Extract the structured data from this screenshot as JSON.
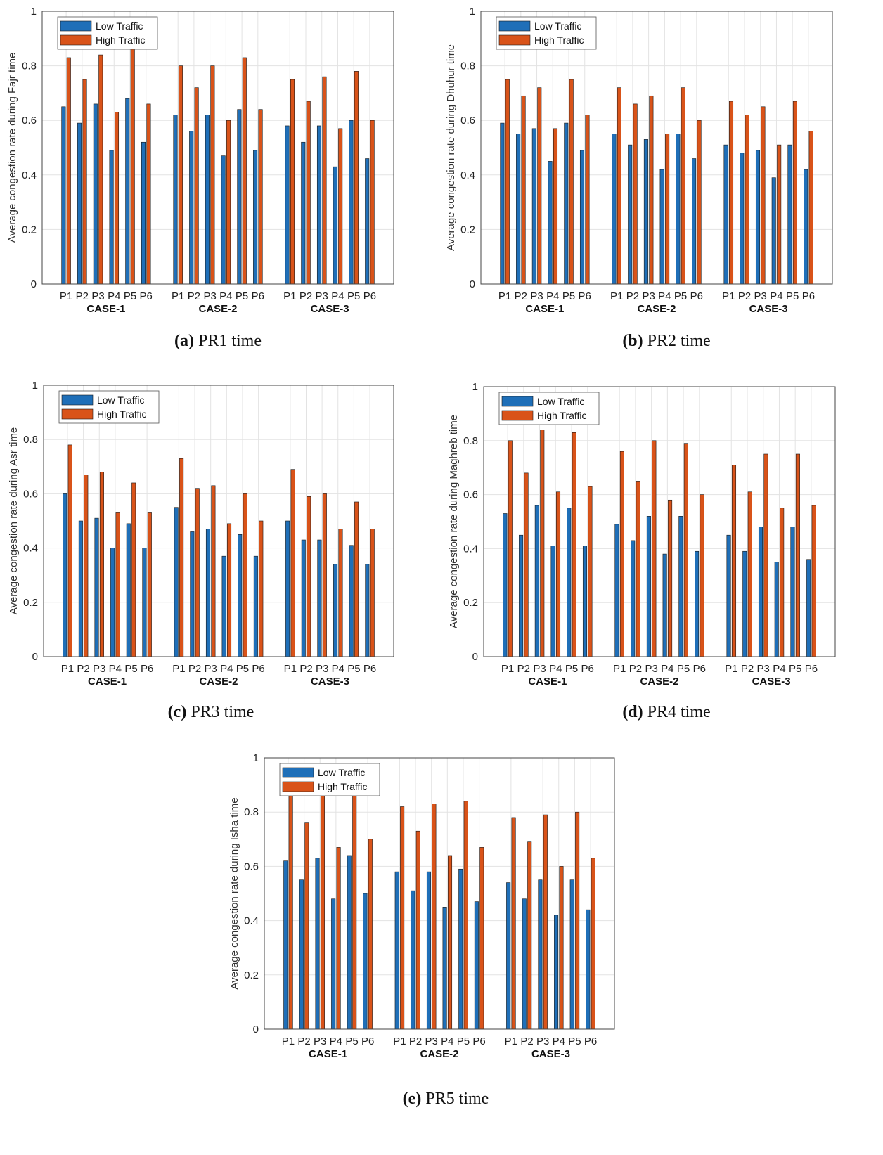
{
  "colors": {
    "low": "#1f6fb8",
    "high": "#d95319",
    "grid": "#e3e3e3",
    "axis": "#444444"
  },
  "chart_data": [
    {
      "type": "bar",
      "caption_letter": "(a)",
      "caption_text": " PR1 time",
      "ylabel": "Average congestion rate during Fajr time",
      "ylim": [
        0,
        1
      ],
      "yticks": [
        "0",
        "0.2",
        "0.4",
        "0.6",
        "0.8",
        "1"
      ],
      "groups": [
        "CASE-1",
        "CASE-2",
        "CASE-3"
      ],
      "categories": [
        "P1",
        "P2",
        "P3",
        "P4",
        "P5",
        "P6"
      ],
      "legend": "top-left",
      "series": [
        {
          "name": "Low Traffic",
          "values": [
            [
              0.65,
              0.59,
              0.66,
              0.49,
              0.68,
              0.52
            ],
            [
              0.62,
              0.56,
              0.62,
              0.47,
              0.64,
              0.49
            ],
            [
              0.58,
              0.52,
              0.58,
              0.43,
              0.6,
              0.46
            ]
          ]
        },
        {
          "name": "High Traffic",
          "values": [
            [
              0.83,
              0.75,
              0.84,
              0.63,
              0.87,
              0.66
            ],
            [
              0.8,
              0.72,
              0.8,
              0.6,
              0.83,
              0.64
            ],
            [
              0.75,
              0.67,
              0.76,
              0.57,
              0.78,
              0.6
            ]
          ]
        }
      ]
    },
    {
      "type": "bar",
      "caption_letter": "(b)",
      "caption_text": " PR2 time",
      "ylabel": "Average congestion rate during Dhuhur time",
      "ylim": [
        0,
        1
      ],
      "yticks": [
        "0",
        "0.2",
        "0.4",
        "0.6",
        "0.8",
        "1"
      ],
      "groups": [
        "CASE-1",
        "CASE-2",
        "CASE-3"
      ],
      "categories": [
        "P1",
        "P2",
        "P3",
        "P4",
        "P5",
        "P6"
      ],
      "legend": "top-left",
      "series": [
        {
          "name": "Low Traffic",
          "values": [
            [
              0.59,
              0.55,
              0.57,
              0.45,
              0.59,
              0.49
            ],
            [
              0.55,
              0.51,
              0.53,
              0.42,
              0.55,
              0.46
            ],
            [
              0.51,
              0.48,
              0.49,
              0.39,
              0.51,
              0.42
            ]
          ]
        },
        {
          "name": "High Traffic",
          "values": [
            [
              0.75,
              0.69,
              0.72,
              0.57,
              0.75,
              0.62
            ],
            [
              0.72,
              0.66,
              0.69,
              0.55,
              0.72,
              0.6
            ],
            [
              0.67,
              0.62,
              0.65,
              0.51,
              0.67,
              0.56
            ]
          ]
        }
      ]
    },
    {
      "type": "bar",
      "caption_letter": "(c)",
      "caption_text": " PR3 time",
      "ylabel": "Average congestion rate during Asr time",
      "ylim": [
        0,
        1
      ],
      "yticks": [
        "0",
        "0.2",
        "0.4",
        "0.6",
        "0.8",
        "1"
      ],
      "groups": [
        "CASE-1",
        "CASE-2",
        "CASE-3"
      ],
      "categories": [
        "P1",
        "P2",
        "P3",
        "P4",
        "P5",
        "P6"
      ],
      "legend": "top-left",
      "series": [
        {
          "name": "Low Traffic",
          "values": [
            [
              0.6,
              0.5,
              0.51,
              0.4,
              0.49,
              0.4
            ],
            [
              0.55,
              0.46,
              0.47,
              0.37,
              0.45,
              0.37
            ],
            [
              0.5,
              0.43,
              0.43,
              0.34,
              0.41,
              0.34
            ]
          ]
        },
        {
          "name": "High Traffic",
          "values": [
            [
              0.78,
              0.67,
              0.68,
              0.53,
              0.64,
              0.53
            ],
            [
              0.73,
              0.62,
              0.63,
              0.49,
              0.6,
              0.5
            ],
            [
              0.69,
              0.59,
              0.6,
              0.47,
              0.57,
              0.47
            ]
          ]
        }
      ]
    },
    {
      "type": "bar",
      "caption_letter": "(d)",
      "caption_text": " PR4 time",
      "ylabel": "Average congestion rate during Maghreb time",
      "ylim": [
        0,
        1
      ],
      "yticks": [
        "0",
        "0.2",
        "0.4",
        "0.6",
        "0.8",
        "1"
      ],
      "groups": [
        "CASE-1",
        "CASE-2",
        "CASE-3"
      ],
      "categories": [
        "P1",
        "P2",
        "P3",
        "P4",
        "P5",
        "P6"
      ],
      "legend": "top-left",
      "series": [
        {
          "name": "Low Traffic",
          "values": [
            [
              0.53,
              0.45,
              0.56,
              0.41,
              0.55,
              0.41
            ],
            [
              0.49,
              0.43,
              0.52,
              0.38,
              0.52,
              0.39
            ],
            [
              0.45,
              0.39,
              0.48,
              0.35,
              0.48,
              0.36
            ]
          ]
        },
        {
          "name": "High Traffic",
          "values": [
            [
              0.8,
              0.68,
              0.84,
              0.61,
              0.83,
              0.63
            ],
            [
              0.76,
              0.65,
              0.8,
              0.58,
              0.79,
              0.6
            ],
            [
              0.71,
              0.61,
              0.75,
              0.55,
              0.75,
              0.56
            ]
          ]
        }
      ]
    },
    {
      "type": "bar",
      "caption_letter": "(e)",
      "caption_text": " PR5 time",
      "ylabel": "Average congestion rate during Isha time",
      "ylim": [
        0,
        1
      ],
      "yticks": [
        "0",
        "0.2",
        "0.4",
        "0.6",
        "0.8",
        "1"
      ],
      "groups": [
        "CASE-1",
        "CASE-2",
        "CASE-3"
      ],
      "categories": [
        "P1",
        "P2",
        "P3",
        "P4",
        "P5",
        "P6"
      ],
      "legend": "top-left",
      "series": [
        {
          "name": "Low Traffic",
          "values": [
            [
              0.62,
              0.55,
              0.63,
              0.48,
              0.64,
              0.5
            ],
            [
              0.58,
              0.51,
              0.58,
              0.45,
              0.59,
              0.47
            ],
            [
              0.54,
              0.48,
              0.55,
              0.42,
              0.55,
              0.44
            ]
          ]
        },
        {
          "name": "High Traffic",
          "values": [
            [
              0.87,
              0.76,
              0.87,
              0.67,
              0.87,
              0.7
            ],
            [
              0.82,
              0.73,
              0.83,
              0.64,
              0.84,
              0.67
            ],
            [
              0.78,
              0.69,
              0.79,
              0.6,
              0.8,
              0.63
            ]
          ]
        }
      ]
    }
  ]
}
